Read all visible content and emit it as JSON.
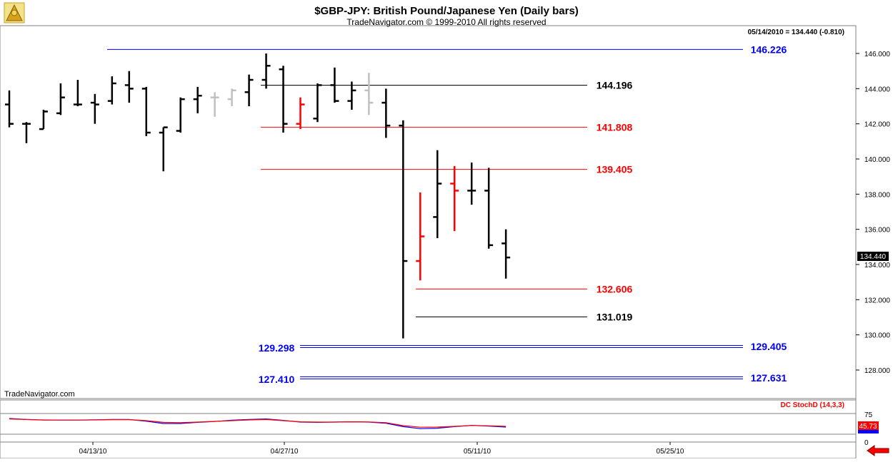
{
  "title": "$GBP-JPY:  British Pound/Japanese Yen  (Daily bars)",
  "copyright": "TradeNavigator.com © 1999-2010 All rights reserved",
  "header_readout": "05/14/2010 = 134.440 (-0.810)",
  "watermark": "TradeNavigator.com",
  "last_price_label": "134.440",
  "colors": {
    "up_bar": "#000000",
    "highlight_bar": "#ff0000",
    "inside_bar": "#c0c0c0",
    "blue_level": "#0000ff",
    "red_level": "#ff0000",
    "black_level": "#000000",
    "stoch_k": "#ff0000",
    "stoch_d": "#0000ff"
  },
  "chart_data": {
    "type": "ohlc",
    "y_ticks": [
      "146.000",
      "144.000",
      "142.000",
      "140.000",
      "138.000",
      "136.000",
      "134.000",
      "132.000",
      "130.000",
      "128.000"
    ],
    "ylim": [
      126.8,
      147.2
    ],
    "x_ticks": [
      "04/13/10",
      "04/27/10",
      "05/11/10",
      "05/25/10"
    ],
    "bars": [
      {
        "o": 143.1,
        "h": 143.9,
        "l": 141.8,
        "c": 142.0,
        "color": "black"
      },
      {
        "o": 142.0,
        "h": 142.1,
        "l": 140.9,
        "c": 142.0,
        "color": "black"
      },
      {
        "o": 141.7,
        "h": 142.8,
        "l": 141.7,
        "c": 142.7,
        "color": "black"
      },
      {
        "o": 142.6,
        "h": 144.3,
        "l": 142.5,
        "c": 143.5,
        "color": "black"
      },
      {
        "o": 143.1,
        "h": 144.5,
        "l": 143.0,
        "c": 143.1,
        "color": "black"
      },
      {
        "o": 143.2,
        "h": 143.7,
        "l": 142.0,
        "c": 143.1,
        "color": "black"
      },
      {
        "o": 143.3,
        "h": 144.7,
        "l": 143.1,
        "c": 144.3,
        "color": "black"
      },
      {
        "o": 144.2,
        "h": 145.0,
        "l": 143.2,
        "c": 144.0,
        "color": "black"
      },
      {
        "o": 144.0,
        "h": 144.1,
        "l": 141.3,
        "c": 141.5,
        "color": "black"
      },
      {
        "o": 141.5,
        "h": 141.8,
        "l": 139.3,
        "c": 141.8,
        "color": "black"
      },
      {
        "o": 141.6,
        "h": 143.5,
        "l": 141.5,
        "c": 143.4,
        "color": "black"
      },
      {
        "o": 143.4,
        "h": 144.1,
        "l": 142.6,
        "c": 143.6,
        "color": "black"
      },
      {
        "o": 143.5,
        "h": 143.8,
        "l": 142.4,
        "c": 143.5,
        "color": "gray"
      },
      {
        "o": 143.4,
        "h": 144.0,
        "l": 143.0,
        "c": 143.9,
        "color": "gray"
      },
      {
        "o": 143.8,
        "h": 144.8,
        "l": 143.0,
        "c": 144.5,
        "color": "black"
      },
      {
        "o": 144.5,
        "h": 146.0,
        "l": 144.0,
        "c": 145.3,
        "color": "black"
      },
      {
        "o": 145.1,
        "h": 145.3,
        "l": 141.5,
        "c": 142.0,
        "color": "black"
      },
      {
        "o": 142.0,
        "h": 143.5,
        "l": 141.7,
        "c": 143.1,
        "color": "red"
      },
      {
        "o": 142.3,
        "h": 144.3,
        "l": 142.1,
        "c": 144.2,
        "color": "black"
      },
      {
        "o": 144.2,
        "h": 145.2,
        "l": 143.2,
        "c": 143.3,
        "color": "black"
      },
      {
        "o": 143.3,
        "h": 144.4,
        "l": 142.8,
        "c": 143.9,
        "color": "black"
      },
      {
        "o": 143.9,
        "h": 144.9,
        "l": 142.5,
        "c": 143.2,
        "color": "gray"
      },
      {
        "o": 143.2,
        "h": 144.0,
        "l": 141.2,
        "c": 141.9,
        "color": "black"
      },
      {
        "o": 141.9,
        "h": 142.2,
        "l": 129.8,
        "c": 134.2,
        "color": "black"
      },
      {
        "o": 134.2,
        "h": 138.1,
        "l": 133.1,
        "c": 135.6,
        "color": "red"
      },
      {
        "o": 136.7,
        "h": 140.5,
        "l": 135.5,
        "c": 138.6,
        "color": "black"
      },
      {
        "o": 138.6,
        "h": 139.6,
        "l": 135.9,
        "c": 138.2,
        "color": "red"
      },
      {
        "o": 138.2,
        "h": 139.8,
        "l": 137.4,
        "c": 138.2,
        "color": "black"
      },
      {
        "o": 138.2,
        "h": 139.5,
        "l": 134.9,
        "c": 135.1,
        "color": "black"
      },
      {
        "o": 135.2,
        "h": 136.0,
        "l": 133.2,
        "c": 134.4,
        "color": "black"
      }
    ],
    "levels": [
      {
        "value": 146.226,
        "label": "146.226",
        "color": "blue",
        "from": 4,
        "to": 42,
        "side": "right",
        "double": false
      },
      {
        "value": 144.196,
        "label": "144.196",
        "color": "black",
        "from": 15,
        "to": 33,
        "side": "right",
        "double": false
      },
      {
        "value": 141.808,
        "label": "141.808",
        "color": "red",
        "from": 15,
        "to": 33,
        "side": "right",
        "double": false
      },
      {
        "value": 139.405,
        "label": "139.405",
        "color": "red",
        "from": 15,
        "to": 33,
        "side": "right",
        "double": false
      },
      {
        "value": 132.606,
        "label": "132.606",
        "color": "red",
        "from": 23,
        "to": 33,
        "side": "right",
        "double": false
      },
      {
        "value": 131.019,
        "label": "131.019",
        "color": "black",
        "from": 23,
        "to": 33,
        "side": "right",
        "double": false
      },
      {
        "value": 129.35,
        "label": "129.405",
        "color": "blue",
        "from": 17,
        "to": 42,
        "side": "right",
        "double": true
      },
      {
        "value": 127.5,
        "label": "127.631",
        "color": "blue",
        "from": 17,
        "to": 42,
        "side": "right",
        "double": true
      },
      {
        "value": 129.35,
        "label": "129.298",
        "color": "blue",
        "from": 17,
        "to": 42,
        "side": "left",
        "double": true
      },
      {
        "value": 127.5,
        "label": "127.410",
        "color": "blue",
        "from": 17,
        "to": 42,
        "side": "left",
        "double": true
      }
    ],
    "stochastic": {
      "name": "DC StochD (14,3,3)",
      "tick_labels": [
        "75",
        "0"
      ],
      "upper_level": 75,
      "lower_level": 25,
      "current_value_label": "45.73",
      "k": [
        92,
        88,
        85,
        84,
        84,
        85,
        87,
        87,
        80,
        68,
        66,
        70,
        75,
        80,
        85,
        88,
        80,
        72,
        70,
        70,
        72,
        71,
        66,
        45,
        34,
        35,
        40,
        46,
        44,
        40
      ],
      "d": [
        95,
        88,
        84,
        84,
        84,
        86,
        88,
        88,
        76,
        60,
        60,
        68,
        74,
        83,
        88,
        92,
        82,
        70,
        68,
        70,
        72,
        70,
        62,
        38,
        24,
        27,
        38,
        47,
        42,
        35
      ]
    }
  }
}
